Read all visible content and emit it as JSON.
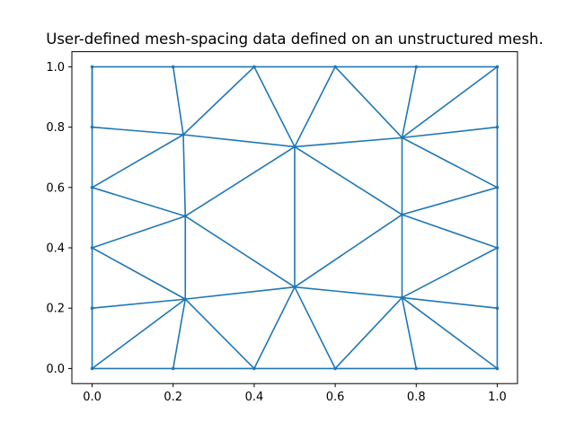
{
  "chart_data": {
    "type": "line",
    "title": "User-defined mesh-spacing data defined on an unstructured mesh.",
    "xlabel": "",
    "ylabel": "",
    "xlim": [
      -0.05,
      1.05
    ],
    "ylim": [
      -0.05,
      1.05
    ],
    "xticks": [
      "0.0",
      "0.2",
      "0.4",
      "0.6",
      "0.8",
      "1.0"
    ],
    "yticks": [
      "0.0",
      "0.2",
      "0.4",
      "0.6",
      "0.8",
      "1.0"
    ],
    "grid": false,
    "color": "#1f77b4",
    "nodes": [
      [
        0.0,
        0.0
      ],
      [
        0.2,
        0.0
      ],
      [
        0.4,
        0.0
      ],
      [
        0.6,
        0.0
      ],
      [
        0.8,
        0.0
      ],
      [
        1.0,
        0.0
      ],
      [
        1.0,
        0.2
      ],
      [
        1.0,
        0.4
      ],
      [
        1.0,
        0.6
      ],
      [
        1.0,
        0.8
      ],
      [
        1.0,
        1.0
      ],
      [
        0.8,
        1.0
      ],
      [
        0.6,
        1.0
      ],
      [
        0.4,
        1.0
      ],
      [
        0.2,
        1.0
      ],
      [
        0.0,
        1.0
      ],
      [
        0.0,
        0.8
      ],
      [
        0.0,
        0.6
      ],
      [
        0.0,
        0.4
      ],
      [
        0.0,
        0.2
      ],
      [
        0.23,
        0.23
      ],
      [
        0.5,
        0.27
      ],
      [
        0.765,
        0.235
      ],
      [
        0.23,
        0.505
      ],
      [
        0.765,
        0.51
      ],
      [
        0.225,
        0.775
      ],
      [
        0.5,
        0.735
      ],
      [
        0.765,
        0.765
      ]
    ],
    "edges": [
      [
        0,
        1
      ],
      [
        1,
        2
      ],
      [
        2,
        3
      ],
      [
        3,
        4
      ],
      [
        4,
        5
      ],
      [
        5,
        6
      ],
      [
        6,
        7
      ],
      [
        7,
        8
      ],
      [
        8,
        9
      ],
      [
        9,
        10
      ],
      [
        10,
        11
      ],
      [
        11,
        12
      ],
      [
        12,
        13
      ],
      [
        13,
        14
      ],
      [
        14,
        15
      ],
      [
        15,
        16
      ],
      [
        16,
        17
      ],
      [
        17,
        18
      ],
      [
        18,
        19
      ],
      [
        19,
        0
      ],
      [
        0,
        20
      ],
      [
        1,
        20
      ],
      [
        19,
        20
      ],
      [
        18,
        20
      ],
      [
        2,
        20
      ],
      [
        2,
        21
      ],
      [
        3,
        21
      ],
      [
        20,
        21
      ],
      [
        3,
        22
      ],
      [
        4,
        22
      ],
      [
        21,
        22
      ],
      [
        22,
        5
      ],
      [
        22,
        6
      ],
      [
        22,
        7
      ],
      [
        20,
        23
      ],
      [
        18,
        23
      ],
      [
        17,
        23
      ],
      [
        23,
        21
      ],
      [
        21,
        24
      ],
      [
        22,
        24
      ],
      [
        24,
        7
      ],
      [
        24,
        8
      ],
      [
        23,
        26
      ],
      [
        24,
        26
      ],
      [
        21,
        26
      ],
      [
        17,
        25
      ],
      [
        16,
        25
      ],
      [
        25,
        14
      ],
      [
        15,
        16
      ],
      [
        25,
        13
      ],
      [
        25,
        23
      ],
      [
        25,
        26
      ],
      [
        26,
        13
      ],
      [
        26,
        12
      ],
      [
        26,
        27
      ],
      [
        27,
        12
      ],
      [
        27,
        11
      ],
      [
        27,
        10
      ],
      [
        27,
        9
      ],
      [
        27,
        8
      ],
      [
        27,
        24
      ]
    ]
  }
}
